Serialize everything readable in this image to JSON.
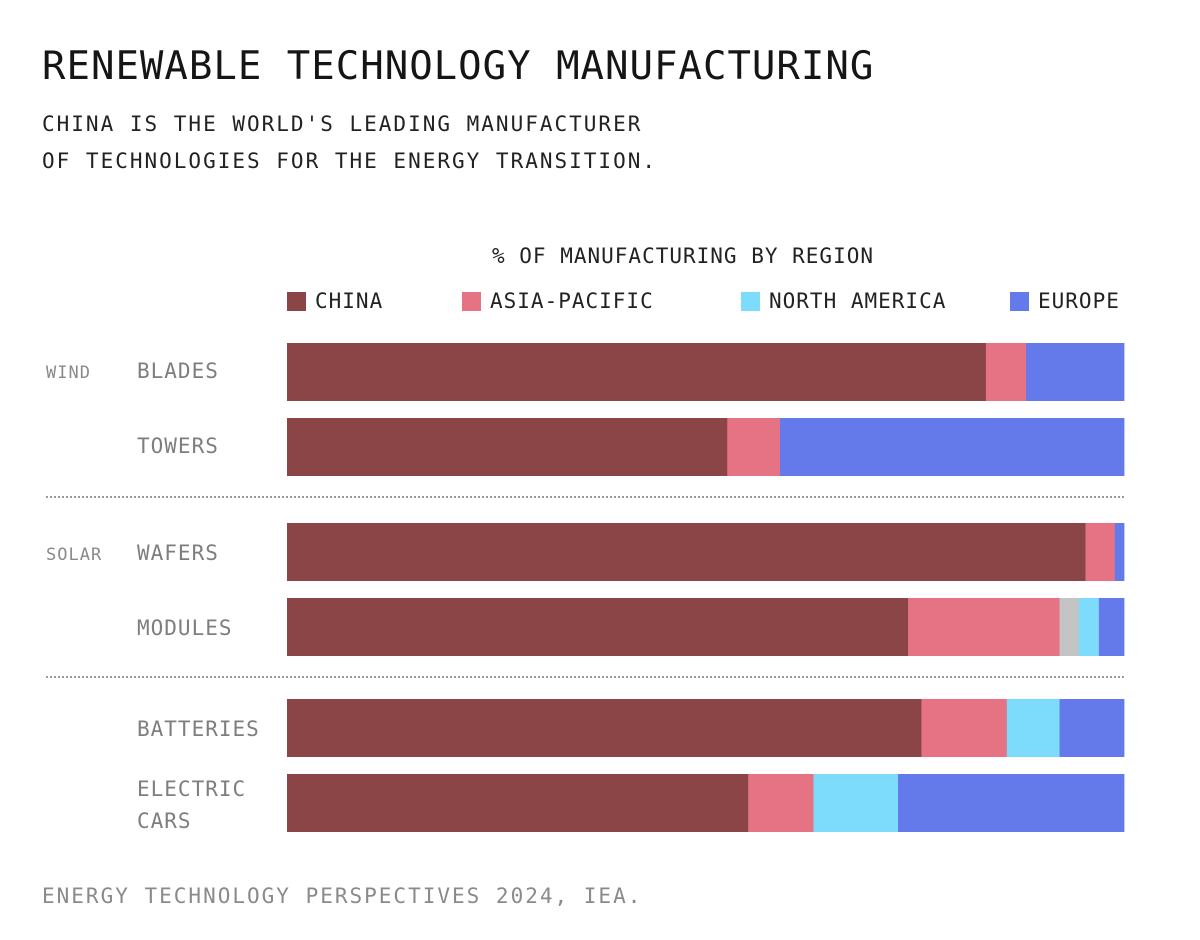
{
  "title": "RENEWABLE TECHNOLOGY MANUFACTURING",
  "subtitle": [
    "CHINA IS THE WORLD'S LEADING MANUFACTURER",
    "OF TECHNOLOGIES FOR THE ENERGY TRANSITION."
  ],
  "source": "ENERGY TECHNOLOGY PERSPECTIVES 2024, IEA.",
  "colors": {
    "china": "#8b4547",
    "asia_pacific": "#e57384",
    "other": "#c4c4c4",
    "north_america": "#7ddcfb",
    "europe": "#647aeb"
  },
  "chart_data": {
    "type": "bar",
    "orientation": "horizontal",
    "stacked": true,
    "title": "% OF MANUFACTURING BY REGION",
    "xlim": [
      0,
      100
    ],
    "legend_position": "top",
    "grid": false,
    "legend": [
      {
        "name": "CHINA",
        "color": "#8b4547"
      },
      {
        "name": "ASIA-PACIFIC",
        "color": "#e57384"
      },
      {
        "name": "NORTH AMERICA",
        "color": "#7ddcfb"
      },
      {
        "name": "EUROPE",
        "color": "#647aeb"
      }
    ],
    "groups": [
      "WIND",
      "SOLAR",
      ""
    ],
    "categories": [
      {
        "group": "WIND",
        "label": [
          "BLADES"
        ],
        "segments": {
          "china": 83.5,
          "asia_pacific": 4.8,
          "other": 0,
          "north_america": 0,
          "europe": 11.7
        }
      },
      {
        "group": "WIND",
        "label": [
          "TOWERS"
        ],
        "segments": {
          "china": 52.6,
          "asia_pacific": 6.3,
          "other": 0,
          "north_america": 0,
          "europe": 41.1
        }
      },
      {
        "group": "SOLAR",
        "label": [
          "WAFERS"
        ],
        "segments": {
          "china": 95.4,
          "asia_pacific": 3.5,
          "other": 0,
          "north_america": 0,
          "europe": 1.1
        }
      },
      {
        "group": "SOLAR",
        "label": [
          "MODULES"
        ],
        "segments": {
          "china": 74.2,
          "asia_pacific": 18.1,
          "other": 2.3,
          "north_america": 2.4,
          "europe": 3.0
        }
      },
      {
        "group": "",
        "label": [
          "BATTERIES"
        ],
        "segments": {
          "china": 75.8,
          "asia_pacific": 10.2,
          "other": 0,
          "north_america": 6.3,
          "europe": 7.7
        }
      },
      {
        "group": "",
        "label": [
          "ELECTRIC",
          "CARS"
        ],
        "segments": {
          "china": 55.1,
          "asia_pacific": 7.8,
          "other": 0,
          "north_america": 10.1,
          "europe": 27.0
        }
      }
    ]
  }
}
